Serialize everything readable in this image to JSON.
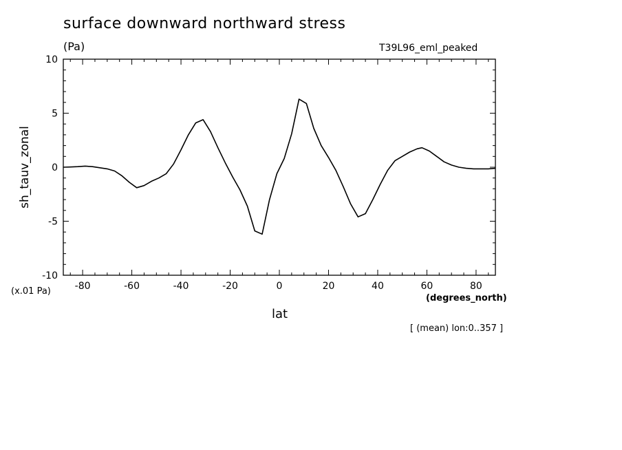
{
  "chart_data": {
    "type": "line",
    "title": "surface downward northward stress",
    "units_label": "(Pa)",
    "run_label": "T39L96_eml_peaked",
    "ylabel": "sh_tauv_zonal",
    "y_scale_note": "(x.01 Pa)",
    "xlabel": "lat",
    "x_units_label": "(degrees_north)",
    "footnote": "[ (mean) lon:0..357 ]",
    "xlim": [
      -87.86,
      87.86
    ],
    "ylim": [
      -10,
      10
    ],
    "x_ticks": [
      -80,
      -60,
      -40,
      -20,
      0,
      20,
      40,
      60,
      80
    ],
    "y_ticks": [
      -10,
      -5,
      0,
      5,
      10
    ],
    "grid": false,
    "series": [
      {
        "x": [
          -87.86,
          -85,
          -82,
          -79,
          -76,
          -73,
          -70,
          -67,
          -64,
          -61,
          -58,
          -55,
          -52,
          -49,
          -46,
          -43,
          -40,
          -37,
          -34,
          -31,
          -28,
          -25,
          -22,
          -19,
          -16,
          -13,
          -10,
          -7,
          -4,
          -1,
          2,
          5,
          8,
          11,
          14,
          17,
          20,
          23,
          26,
          29,
          32,
          35,
          38,
          41,
          44,
          47,
          50,
          53,
          56,
          58,
          61,
          64,
          67,
          70,
          73,
          76,
          79,
          82,
          85,
          87.86
        ],
        "y": [
          0.0,
          0.02,
          0.05,
          0.1,
          0.05,
          -0.05,
          -0.15,
          -0.35,
          -0.8,
          -1.4,
          -1.9,
          -1.7,
          -1.3,
          -1.0,
          -0.6,
          0.3,
          1.6,
          3.0,
          4.1,
          4.4,
          3.3,
          1.8,
          0.4,
          -0.9,
          -2.1,
          -3.6,
          -5.9,
          -6.2,
          -3.0,
          -0.6,
          0.8,
          3.1,
          6.3,
          5.9,
          3.6,
          2.0,
          0.9,
          -0.3,
          -1.8,
          -3.4,
          -4.6,
          -4.3,
          -3.0,
          -1.6,
          -0.3,
          0.6,
          1.0,
          1.4,
          1.7,
          1.8,
          1.5,
          1.0,
          0.5,
          0.2,
          0.0,
          -0.1,
          -0.15,
          -0.15,
          -0.15,
          -0.1
        ]
      }
    ]
  }
}
